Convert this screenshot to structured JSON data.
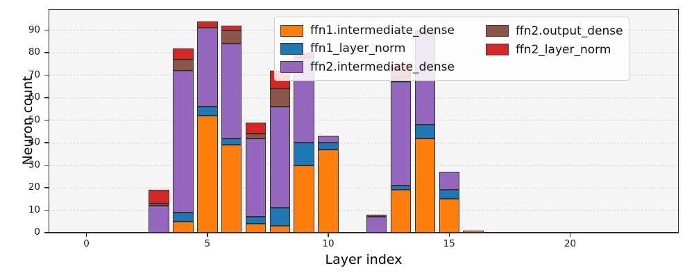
{
  "chart_data": {
    "type": "bar",
    "stacked": true,
    "title": "",
    "xlabel": "Layer index",
    "ylabel": "Neuron count",
    "x": [
      0,
      1,
      2,
      3,
      4,
      5,
      6,
      7,
      8,
      9,
      10,
      11,
      12,
      13,
      14,
      15,
      16,
      17,
      18,
      19,
      20,
      21,
      22,
      23,
      24
    ],
    "series": [
      {
        "name": "ffn1.intermediate_dense",
        "color": "#ff7f0e",
        "values": [
          0,
          0,
          0,
          0,
          5,
          52,
          39,
          4,
          3,
          30,
          37,
          0,
          0,
          19,
          42,
          15,
          1,
          0,
          0,
          0,
          0,
          0,
          0,
          0,
          0
        ]
      },
      {
        "name": "ffn1_layer_norm",
        "color": "#1f77b4",
        "values": [
          0,
          0,
          0,
          0,
          4,
          4,
          3,
          3,
          8,
          10,
          3,
          0,
          0,
          2,
          6,
          4,
          0,
          0,
          0,
          0,
          0,
          0,
          0,
          0,
          0
        ]
      },
      {
        "name": "ffn2.intermediate_dense",
        "color": "#9467bd",
        "values": [
          0,
          0,
          0,
          12,
          63,
          35,
          42,
          35,
          45,
          38,
          3,
          0,
          7,
          46,
          40,
          8,
          0,
          0,
          0,
          0,
          0,
          0,
          0,
          0,
          0
        ]
      },
      {
        "name": "ffn2.output_dense",
        "color": "#8c564b",
        "values": [
          0,
          0,
          0,
          1,
          5,
          0,
          6,
          2,
          8,
          0,
          0,
          0,
          1,
          2,
          0,
          0,
          0,
          0,
          0,
          0,
          0,
          0,
          0,
          0,
          0
        ]
      },
      {
        "name": "ffn2_layer_norm",
        "color": "#d62728",
        "values": [
          0,
          0,
          0,
          6,
          5,
          3,
          2,
          5,
          8,
          2,
          0,
          0,
          0,
          6,
          2,
          0,
          0,
          0,
          0,
          0,
          0,
          0,
          0,
          0,
          0
        ]
      }
    ],
    "xticks": [
      0,
      5,
      10,
      15,
      20
    ],
    "yticks": [
      0,
      10,
      20,
      30,
      40,
      50,
      60,
      70,
      80,
      90
    ],
    "ylim": [
      0,
      99
    ],
    "xlim": [
      -1.56,
      24.5
    ],
    "grid": {
      "axis": "y",
      "style": "dashed",
      "color": "#d6d6d6"
    },
    "legend": {
      "location": "upper right",
      "columns": 2,
      "column_split": 3
    },
    "plot_background": "#f5f5f5",
    "bar_edge_color": "#333333",
    "bar_width_fraction": 0.85
  }
}
